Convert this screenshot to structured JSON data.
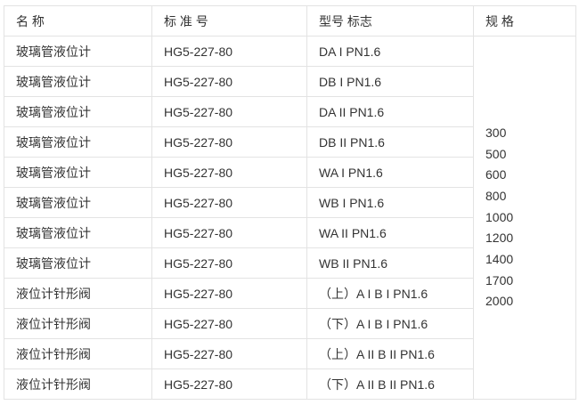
{
  "colors": {
    "background": "#ffffff",
    "border": "#e3e3e3",
    "text": "#333333"
  },
  "table": {
    "headers": [
      "名 称",
      "标 准 号",
      "型号 标志",
      "规 格"
    ],
    "rows": [
      {
        "name": "玻璃管液位计",
        "standard": "HG5-227-80",
        "model": "DA I PN1.6"
      },
      {
        "name": "玻璃管液位计",
        "standard": "HG5-227-80",
        "model": "DB I PN1.6"
      },
      {
        "name": "玻璃管液位计",
        "standard": "HG5-227-80",
        "model": "DA II PN1.6"
      },
      {
        "name": "玻璃管液位计",
        "standard": "HG5-227-80",
        "model": "DB II PN1.6"
      },
      {
        "name": "玻璃管液位计",
        "standard": "HG5-227-80",
        "model": "WA I PN1.6"
      },
      {
        "name": "玻璃管液位计",
        "standard": "HG5-227-80",
        "model": "WB I PN1.6"
      },
      {
        "name": "玻璃管液位计",
        "standard": "HG5-227-80",
        "model": "WA II PN1.6"
      },
      {
        "name": "玻璃管液位计",
        "standard": "HG5-227-80",
        "model": "WB II PN1.6"
      },
      {
        "name": "液位计针形阀",
        "standard": "HG5-227-80",
        "model": "（上）A I B I PN1.6"
      },
      {
        "name": "液位计针形阀",
        "standard": "HG5-227-80",
        "model": "（下）A I B I PN1.6"
      },
      {
        "name": "液位计针形阀",
        "standard": "HG5-227-80",
        "model": "（上）A II B II PN1.6"
      },
      {
        "name": "液位计针形阀",
        "standard": "HG5-227-80",
        "model": "（下）A II B II PN1.6"
      }
    ],
    "specs": [
      "300",
      "500",
      "600",
      "800",
      "1000",
      "1200",
      "1400",
      "1700",
      "2000"
    ]
  }
}
